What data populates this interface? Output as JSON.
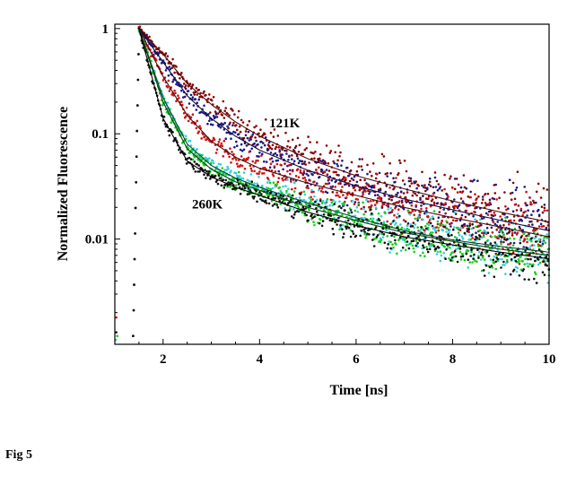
{
  "figure": {
    "caption": "Fig 5"
  },
  "chart_data": {
    "type": "scatter",
    "xlabel": "Time [ns]",
    "ylabel": "Normalized Fluorescence",
    "xlim": [
      1.0,
      10.0
    ],
    "ylim": [
      0.001,
      1.1
    ],
    "yscale": "log",
    "x_ticks": [
      2,
      4,
      6,
      8,
      10
    ],
    "y_ticks": [
      {
        "value": 1,
        "label": "1"
      },
      {
        "value": 0.1,
        "label": "0.1"
      },
      {
        "value": 0.01,
        "label": "0.01"
      }
    ],
    "grid": false,
    "legend": "none",
    "annotations": [
      {
        "text": "121K",
        "x": 4.2,
        "y": 0.115
      },
      {
        "text": "260K",
        "x": 2.6,
        "y": 0.0195
      }
    ],
    "series": [
      {
        "color": "#8b0000",
        "fit_color": "#4a1010",
        "x": [
          1.5,
          2.0,
          2.5,
          3.0,
          3.5,
          4.0,
          5.0,
          6.0,
          7.0,
          8.0,
          9.0,
          10.0
        ],
        "y": [
          1.0,
          0.57,
          0.3,
          0.19,
          0.13,
          0.095,
          0.058,
          0.04,
          0.03,
          0.023,
          0.018,
          0.0145
        ]
      },
      {
        "color": "#1a1a80",
        "fit_color": "#101040",
        "x": [
          1.5,
          2.0,
          2.5,
          3.0,
          3.5,
          4.0,
          5.0,
          6.0,
          7.0,
          8.0,
          9.0,
          10.0
        ],
        "y": [
          1.0,
          0.48,
          0.23,
          0.14,
          0.095,
          0.07,
          0.045,
          0.032,
          0.024,
          0.019,
          0.015,
          0.012
        ]
      },
      {
        "color": "#d01010",
        "fit_color": "#401010",
        "x": [
          1.5,
          2.0,
          2.5,
          3.0,
          3.5,
          4.0,
          5.0,
          6.0,
          7.0,
          8.0,
          9.0,
          10.0
        ],
        "y": [
          1.0,
          0.35,
          0.15,
          0.085,
          0.06,
          0.047,
          0.034,
          0.026,
          0.02,
          0.016,
          0.013,
          0.0105
        ]
      },
      {
        "color": "#30d0e0",
        "fit_color": "#104040",
        "x": [
          1.5,
          2.0,
          2.5,
          3.0,
          3.5,
          4.0,
          5.0,
          6.0,
          7.0,
          8.0,
          9.0,
          10.0
        ],
        "y": [
          1.0,
          0.22,
          0.08,
          0.05,
          0.038,
          0.031,
          0.022,
          0.016,
          0.012,
          0.0098,
          0.0085,
          0.0075
        ]
      },
      {
        "color": "#10d010",
        "fit_color": "#104010",
        "x": [
          1.5,
          2.0,
          2.5,
          3.0,
          3.5,
          4.0,
          5.0,
          6.0,
          7.0,
          8.0,
          9.0,
          10.0
        ],
        "y": [
          1.0,
          0.2,
          0.072,
          0.046,
          0.035,
          0.029,
          0.02,
          0.015,
          0.0115,
          0.0095,
          0.008,
          0.007
        ]
      },
      {
        "color": "#101010",
        "fit_color": "#000000",
        "x": [
          1.5,
          2.0,
          2.5,
          3.0,
          3.5,
          4.0,
          5.0,
          6.0,
          7.0,
          8.0,
          9.0,
          10.0
        ],
        "y": [
          1.0,
          0.14,
          0.055,
          0.039,
          0.031,
          0.026,
          0.018,
          0.0135,
          0.0105,
          0.0088,
          0.0075,
          0.0065
        ]
      }
    ]
  }
}
